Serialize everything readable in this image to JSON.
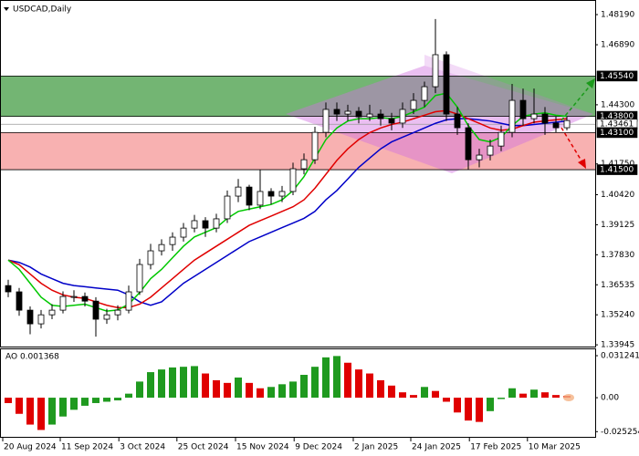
{
  "chart_data": {
    "type": "candlestick",
    "title": "USDCAD,Daily",
    "ylim": [
      1.3387,
      1.4882
    ],
    "yticks": [
      {
        "value": 1.4819,
        "label": "1.48190"
      },
      {
        "value": 1.4689,
        "label": "1.46890"
      },
      {
        "value": 1.443,
        "label": "1.44300"
      },
      {
        "value": 1.4175,
        "label": "1.41750"
      },
      {
        "value": 1.4042,
        "label": "1.40420"
      },
      {
        "value": 1.39125,
        "label": "1.39125"
      },
      {
        "value": 1.3783,
        "label": "1.37830"
      },
      {
        "value": 1.36535,
        "label": "1.36535"
      },
      {
        "value": 1.3524,
        "label": "1.35240"
      },
      {
        "value": 1.33945,
        "label": "1.33945"
      }
    ],
    "levels": [
      {
        "value": 1.4554,
        "label": "1.45540",
        "style": "dark"
      },
      {
        "value": 1.438,
        "label": "1.43800",
        "style": "dark"
      },
      {
        "value": 1.43461,
        "label": "1.43461",
        "style": "light"
      },
      {
        "value": 1.431,
        "label": "1.43100",
        "style": "dark"
      },
      {
        "value": 1.415,
        "label": "1.41500",
        "style": "dark"
      }
    ],
    "zones": [
      {
        "from": 1.438,
        "to": 1.4554,
        "color": "#5aa85a"
      },
      {
        "from": 1.415,
        "to": 1.431,
        "color": "#f7a3a3"
      }
    ],
    "xticks": [
      {
        "value": -0.5,
        "label": "20 Aug 2024"
      },
      {
        "value": 4.75,
        "label": "11 Sep 2024"
      },
      {
        "value": 10.1,
        "label": "3 Oct 2024"
      },
      {
        "value": 15.4,
        "label": "25 Oct 2024"
      },
      {
        "value": 20.75,
        "label": "15 Nov 2024"
      },
      {
        "value": 26.1,
        "label": "9 Dec 2024"
      },
      {
        "value": 31.5,
        "label": "2 Jan 2025"
      },
      {
        "value": 36.75,
        "label": "24 Jan 2025"
      },
      {
        "value": 42.1,
        "label": "17 Feb 2025"
      },
      {
        "value": 47.4,
        "label": "10 Mar 2025"
      }
    ],
    "candles": [
      [
        1.365,
        1.3675,
        1.36,
        1.3623
      ],
      [
        1.3623,
        1.364,
        1.352,
        1.3544
      ],
      [
        1.3544,
        1.356,
        1.344,
        1.3485
      ],
      [
        1.3485,
        1.3545,
        1.3465,
        1.3524
      ],
      [
        1.3524,
        1.357,
        1.3505,
        1.3544
      ],
      [
        1.3544,
        1.3625,
        1.353,
        1.3603
      ],
      [
        1.3603,
        1.363,
        1.358,
        1.3603
      ],
      [
        1.3603,
        1.362,
        1.356,
        1.3583
      ],
      [
        1.3583,
        1.36,
        1.343,
        1.3505
      ],
      [
        1.3505,
        1.355,
        1.3485,
        1.3524
      ],
      [
        1.3524,
        1.3565,
        1.35,
        1.3544
      ],
      [
        1.3544,
        1.365,
        1.353,
        1.3623
      ],
      [
        1.3623,
        1.3765,
        1.361,
        1.3741
      ],
      [
        1.3741,
        1.383,
        1.372,
        1.38
      ],
      [
        1.38,
        1.385,
        1.378,
        1.3827
      ],
      [
        1.3827,
        1.388,
        1.38,
        1.3859
      ],
      [
        1.3859,
        1.392,
        1.384,
        1.3898
      ],
      [
        1.3898,
        1.3955,
        1.388,
        1.393
      ],
      [
        1.393,
        1.3945,
        1.386,
        1.3898
      ],
      [
        1.3898,
        1.396,
        1.388,
        1.3938
      ],
      [
        1.3938,
        1.406,
        1.392,
        1.4036
      ],
      [
        1.4036,
        1.411,
        1.401,
        1.4075
      ],
      [
        1.4075,
        1.4085,
        1.3975,
        1.3997
      ],
      [
        1.3997,
        1.415,
        1.398,
        1.4056
      ],
      [
        1.4056,
        1.407,
        1.4,
        1.4036
      ],
      [
        1.4036,
        1.408,
        1.401,
        1.4056
      ],
      [
        1.4056,
        1.418,
        1.404,
        1.4154
      ],
      [
        1.4154,
        1.422,
        1.413,
        1.4193
      ],
      [
        1.4193,
        1.4335,
        1.4175,
        1.4311
      ],
      [
        1.4311,
        1.444,
        1.429,
        1.441
      ],
      [
        1.441,
        1.444,
        1.436,
        1.439
      ],
      [
        1.439,
        1.443,
        1.436,
        1.4402
      ],
      [
        1.4402,
        1.442,
        1.435,
        1.4378
      ],
      [
        1.4378,
        1.443,
        1.436,
        1.439
      ],
      [
        1.439,
        1.441,
        1.434,
        1.437
      ],
      [
        1.437,
        1.4395,
        1.432,
        1.4351
      ],
      [
        1.4351,
        1.444,
        1.433,
        1.441
      ],
      [
        1.441,
        1.448,
        1.439,
        1.4449
      ],
      [
        1.4449,
        1.453,
        1.442,
        1.4508
      ],
      [
        1.4508,
        1.48,
        1.448,
        1.4646
      ],
      [
        1.4646,
        1.466,
        1.436,
        1.439
      ],
      [
        1.439,
        1.442,
        1.43,
        1.4331
      ],
      [
        1.4331,
        1.435,
        1.415,
        1.4193
      ],
      [
        1.4193,
        1.424,
        1.416,
        1.4213
      ],
      [
        1.4213,
        1.428,
        1.419,
        1.4252
      ],
      [
        1.4252,
        1.434,
        1.423,
        1.4311
      ],
      [
        1.4311,
        1.452,
        1.429,
        1.4449
      ],
      [
        1.4449,
        1.45,
        1.434,
        1.437
      ],
      [
        1.437,
        1.45,
        1.435,
        1.439
      ],
      [
        1.439,
        1.442,
        1.43,
        1.4351
      ],
      [
        1.4351,
        1.438,
        1.431,
        1.4331
      ],
      [
        1.4331,
        1.438,
        1.432,
        1.4362
      ]
    ],
    "series": [
      {
        "color": "#0000c8",
        "values": [
          1.376,
          1.375,
          1.373,
          1.37,
          1.368,
          1.366,
          1.365,
          1.3645,
          1.364,
          1.3635,
          1.363,
          1.361,
          1.358,
          1.3565,
          1.358,
          1.362,
          1.366,
          1.369,
          1.372,
          1.375,
          1.378,
          1.381,
          1.384,
          1.386,
          1.388,
          1.39,
          1.392,
          1.394,
          1.397,
          1.402,
          1.406,
          1.411,
          1.416,
          1.42,
          1.424,
          1.427,
          1.429,
          1.431,
          1.433,
          1.435,
          1.4365,
          1.437,
          1.437,
          1.4365,
          1.436,
          1.435,
          1.434,
          1.434,
          1.4345,
          1.435,
          1.4355,
          1.436
        ]
      },
      {
        "color": "#e00000",
        "values": [
          1.376,
          1.374,
          1.37,
          1.366,
          1.363,
          1.361,
          1.36,
          1.3595,
          1.358,
          1.3565,
          1.3555,
          1.3555,
          1.357,
          1.36,
          1.364,
          1.368,
          1.372,
          1.376,
          1.379,
          1.382,
          1.385,
          1.388,
          1.391,
          1.393,
          1.395,
          1.397,
          1.399,
          1.402,
          1.407,
          1.413,
          1.419,
          1.424,
          1.428,
          1.431,
          1.433,
          1.4345,
          1.4355,
          1.437,
          1.4385,
          1.44,
          1.4405,
          1.439,
          1.437,
          1.435,
          1.433,
          1.432,
          1.4325,
          1.434,
          1.4355,
          1.436,
          1.4365,
          1.437
        ]
      },
      {
        "color": "#00c800",
        "values": [
          1.376,
          1.372,
          1.366,
          1.36,
          1.3565,
          1.356,
          1.3565,
          1.357,
          1.3555,
          1.354,
          1.3545,
          1.357,
          1.362,
          1.368,
          1.372,
          1.377,
          1.382,
          1.386,
          1.388,
          1.39,
          1.394,
          1.397,
          1.398,
          1.399,
          1.4,
          1.402,
          1.406,
          1.412,
          1.42,
          1.428,
          1.433,
          1.436,
          1.437,
          1.437,
          1.4375,
          1.437,
          1.438,
          1.44,
          1.442,
          1.447,
          1.448,
          1.442,
          1.434,
          1.428,
          1.427,
          1.429,
          1.434,
          1.438,
          1.439,
          1.4395,
          1.4385,
          1.438
        ]
      }
    ],
    "indicator": {
      "title": "AO 0.001368",
      "up_color": "#1f9a1f",
      "down_color": "#e00000",
      "ylim": [
        -0.0298,
        0.036
      ],
      "yticks": [
        {
          "value": 0.031241,
          "label": "0.031241"
        },
        {
          "value": 0,
          "label": "0.00"
        },
        {
          "value": -0.025254,
          "label": "-0.025254"
        }
      ],
      "values": [
        -0.004,
        -0.012,
        -0.02,
        -0.024,
        -0.02,
        -0.014,
        -0.009,
        -0.006,
        -0.004,
        -0.003,
        -0.002,
        0.003,
        0.012,
        0.019,
        0.021,
        0.0225,
        0.023,
        0.0235,
        0.018,
        0.013,
        0.011,
        0.015,
        0.011,
        0.007,
        0.008,
        0.01,
        0.012,
        0.017,
        0.023,
        0.03,
        0.031,
        0.026,
        0.021,
        0.018,
        0.013,
        0.009,
        0.004,
        0.002,
        0.008,
        0.005,
        -0.003,
        -0.011,
        -0.017,
        -0.018,
        -0.01,
        -0.001,
        0.007,
        0.003,
        0.006,
        0.004,
        0.002,
        0.001368
      ]
    }
  }
}
